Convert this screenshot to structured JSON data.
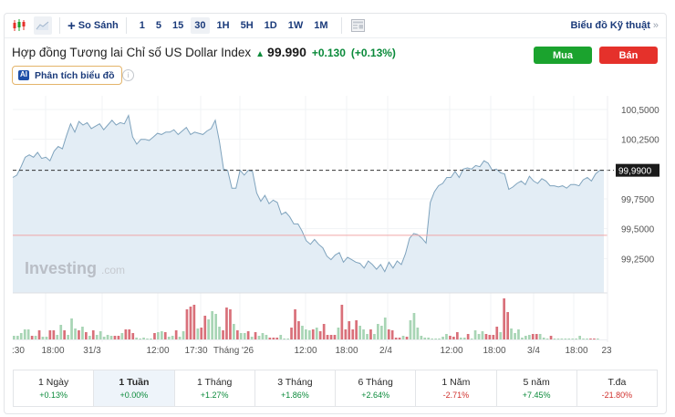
{
  "toolbar": {
    "compare_label": "So Sánh",
    "timeframes": [
      "1",
      "5",
      "15",
      "30",
      "1H",
      "5H",
      "1D",
      "1W",
      "1M"
    ],
    "active_timeframe": "30",
    "technical_link": "Biểu đồ Kỹ thuật",
    "technical_chevron": "»"
  },
  "instrument": {
    "name": "Hợp đồng Tương lai Chỉ số US Dollar Index",
    "direction": "up",
    "price": "99.990",
    "change": "+0.130",
    "change_pct": "(+0.13%)"
  },
  "buttons": {
    "buy": "Mua",
    "sell": "Bán"
  },
  "ai": {
    "badge": "AI",
    "label": "Phân tích biểu đồ",
    "info": "i"
  },
  "colors": {
    "up": "#0a8a3a",
    "down": "#d0312d",
    "buy": "#1ba32e",
    "sell": "#e5312b",
    "line": "#7fa3bd",
    "area": "#e3edf5",
    "vol_up": "#a8d5b5",
    "vol_down": "#d9707a"
  },
  "chart_data": {
    "type": "area",
    "title": "Hợp đồng Tương lai Chỉ số US Dollar Index",
    "watermark": "Investing.com",
    "y_ticks": [
      "100,5000",
      "100,2500",
      "99,7500",
      "99,5000",
      "99,2500"
    ],
    "y_tick_values": [
      100.5,
      100.25,
      99.75,
      99.5,
      99.25
    ],
    "current_price_label": "99,9900",
    "current_price": 99.99,
    "reference_line": 99.445,
    "x_labels": [
      ":30",
      "18:00",
      "31/3",
      "12:00",
      "17:30",
      "Tháng '26",
      "12:00",
      "18:00",
      "2/4",
      "12:00",
      "18:00",
      "3/4",
      "18:00",
      "23"
    ],
    "grid": true,
    "values": [
      99.93,
      99.95,
      100.02,
      100.1,
      100.12,
      100.1,
      100.14,
      100.09,
      100.1,
      100.07,
      100.15,
      100.19,
      100.17,
      100.28,
      100.38,
      100.31,
      100.4,
      100.37,
      100.39,
      100.34,
      100.36,
      100.38,
      100.33,
      100.37,
      100.41,
      100.37,
      100.39,
      100.38,
      100.45,
      100.27,
      100.21,
      100.25,
      100.25,
      100.24,
      100.27,
      100.3,
      100.29,
      100.31,
      100.31,
      100.33,
      100.29,
      100.32,
      100.35,
      100.29,
      100.31,
      100.3,
      100.29,
      100.32,
      100.34,
      100.41,
      100.23,
      100.0,
      99.99,
      99.84,
      99.84,
      99.99,
      99.95,
      99.99,
      99.98,
      99.8,
      99.73,
      99.78,
      99.71,
      99.74,
      99.72,
      99.62,
      99.64,
      99.6,
      99.54,
      99.54,
      99.48,
      99.4,
      99.37,
      99.41,
      99.37,
      99.34,
      99.27,
      99.24,
      99.28,
      99.3,
      99.22,
      99.26,
      99.24,
      99.22,
      99.21,
      99.17,
      99.23,
      99.2,
      99.16,
      99.2,
      99.14,
      99.22,
      99.17,
      99.23,
      99.2,
      99.29,
      99.42,
      99.46,
      99.45,
      99.42,
      99.38,
      99.72,
      99.81,
      99.86,
      99.88,
      99.93,
      99.93,
      99.98,
      99.93,
      100.0,
      100.01,
      100.0,
      100.03,
      100.02,
      100.07,
      100.05,
      99.99,
      100.0,
      99.97,
      99.96,
      99.83,
      99.85,
      99.88,
      99.9,
      99.87,
      99.94,
      99.9,
      99.88,
      99.92,
      99.9,
      99.86,
      99.86,
      99.85,
      99.86,
      99.84,
      99.87,
      99.87,
      99.86,
      99.91,
      99.93,
      99.9,
      99.96,
      99.99,
      99.99
    ],
    "volume": [
      {
        "h": 4,
        "c": "u"
      },
      {
        "h": 4,
        "c": "u"
      },
      {
        "h": 7,
        "c": "u"
      },
      {
        "h": 11,
        "c": "u"
      },
      {
        "h": 11,
        "c": "u"
      },
      {
        "h": 4,
        "c": "d"
      },
      {
        "h": 4,
        "c": "u"
      },
      {
        "h": 10,
        "c": "d"
      },
      {
        "h": 3,
        "c": "u"
      },
      {
        "h": 3,
        "c": "u"
      },
      {
        "h": 10,
        "c": "d"
      },
      {
        "h": 10,
        "c": "d"
      },
      {
        "h": 5,
        "c": "u"
      },
      {
        "h": 16,
        "c": "u"
      },
      {
        "h": 10,
        "c": "d"
      },
      {
        "h": 5,
        "c": "u"
      },
      {
        "h": 23,
        "c": "u"
      },
      {
        "h": 12,
        "c": "u"
      },
      {
        "h": 10,
        "c": "d"
      },
      {
        "h": 14,
        "c": "u"
      },
      {
        "h": 8,
        "c": "d"
      },
      {
        "h": 4,
        "c": "u"
      },
      {
        "h": 10,
        "c": "d"
      },
      {
        "h": 5,
        "c": "u"
      },
      {
        "h": 9,
        "c": "u"
      },
      {
        "h": 3,
        "c": "u"
      },
      {
        "h": 5,
        "c": "u"
      },
      {
        "h": 4,
        "c": "u"
      },
      {
        "h": 4,
        "c": "d"
      },
      {
        "h": 4,
        "c": "d"
      },
      {
        "h": 7,
        "c": "u"
      },
      {
        "h": 11,
        "c": "d"
      },
      {
        "h": 11,
        "c": "d"
      },
      {
        "h": 7,
        "c": "d"
      },
      {
        "h": 2,
        "c": "u"
      },
      {
        "h": 1,
        "c": "u"
      },
      {
        "h": 2,
        "c": "u"
      },
      {
        "h": 1,
        "c": "u"
      },
      {
        "h": 1,
        "c": "u"
      },
      {
        "h": 7,
        "c": "d"
      },
      {
        "h": 8,
        "c": "u"
      },
      {
        "h": 9,
        "c": "u"
      },
      {
        "h": 8,
        "c": "d"
      },
      {
        "h": 3,
        "c": "u"
      },
      {
        "h": 4,
        "c": "u"
      },
      {
        "h": 10,
        "c": "d"
      },
      {
        "h": 3,
        "c": "u"
      },
      {
        "h": 9,
        "c": "u"
      },
      {
        "h": 33,
        "c": "d"
      },
      {
        "h": 36,
        "c": "d"
      },
      {
        "h": 38,
        "c": "d"
      },
      {
        "h": 12,
        "c": "u"
      },
      {
        "h": 13,
        "c": "d"
      },
      {
        "h": 26,
        "c": "d"
      },
      {
        "h": 22,
        "c": "u"
      },
      {
        "h": 31,
        "c": "u"
      },
      {
        "h": 28,
        "c": "u"
      },
      {
        "h": 14,
        "c": "u"
      },
      {
        "h": 10,
        "c": "d"
      },
      {
        "h": 35,
        "c": "d"
      },
      {
        "h": 33,
        "c": "d"
      },
      {
        "h": 17,
        "c": "u"
      },
      {
        "h": 10,
        "c": "d"
      },
      {
        "h": 7,
        "c": "u"
      },
      {
        "h": 7,
        "c": "u"
      },
      {
        "h": 9,
        "c": "d"
      },
      {
        "h": 3,
        "c": "u"
      },
      {
        "h": 8,
        "c": "d"
      },
      {
        "h": 4,
        "c": "u"
      },
      {
        "h": 7,
        "c": "u"
      },
      {
        "h": 5,
        "c": "u"
      },
      {
        "h": 2,
        "c": "d"
      },
      {
        "h": 2,
        "c": "d"
      },
      {
        "h": 2,
        "c": "d"
      },
      {
        "h": 5,
        "c": "u"
      },
      {
        "h": 1,
        "c": "u"
      },
      {
        "h": 1,
        "c": "u"
      },
      {
        "h": 13,
        "c": "d"
      },
      {
        "h": 33,
        "c": "d"
      },
      {
        "h": 20,
        "c": "d"
      },
      {
        "h": 15,
        "c": "u"
      },
      {
        "h": 11,
        "c": "u"
      },
      {
        "h": 10,
        "c": "u"
      },
      {
        "h": 11,
        "c": "d"
      },
      {
        "h": 13,
        "c": "u"
      },
      {
        "h": 9,
        "c": "d"
      },
      {
        "h": 17,
        "c": "d"
      },
      {
        "h": 5,
        "c": "d"
      },
      {
        "h": 5,
        "c": "d"
      },
      {
        "h": 5,
        "c": "d"
      },
      {
        "h": 13,
        "c": "u"
      },
      {
        "h": 38,
        "c": "d"
      },
      {
        "h": 11,
        "c": "d"
      },
      {
        "h": 20,
        "c": "d"
      },
      {
        "h": 11,
        "c": "d"
      },
      {
        "h": 21,
        "c": "d"
      },
      {
        "h": 15,
        "c": "u"
      },
      {
        "h": 11,
        "c": "u"
      },
      {
        "h": 6,
        "c": "u"
      },
      {
        "h": 11,
        "c": "d"
      },
      {
        "h": 6,
        "c": "u"
      },
      {
        "h": 17,
        "c": "u"
      },
      {
        "h": 15,
        "c": "u"
      },
      {
        "h": 24,
        "c": "u"
      },
      {
        "h": 11,
        "c": "d"
      },
      {
        "h": 10,
        "c": "d"
      },
      {
        "h": 2,
        "c": "d"
      },
      {
        "h": 2,
        "c": "d"
      },
      {
        "h": 4,
        "c": "u"
      },
      {
        "h": 3,
        "c": "d"
      },
      {
        "h": 21,
        "c": "u"
      },
      {
        "h": 29,
        "c": "u"
      },
      {
        "h": 13,
        "c": "u"
      },
      {
        "h": 4,
        "c": "u"
      },
      {
        "h": 2,
        "c": "u"
      },
      {
        "h": 2,
        "c": "u"
      },
      {
        "h": 1,
        "c": "u"
      },
      {
        "h": 1,
        "c": "u"
      },
      {
        "h": 1,
        "c": "u"
      },
      {
        "h": 3,
        "c": "u"
      },
      {
        "h": 6,
        "c": "u"
      },
      {
        "h": 4,
        "c": "d"
      },
      {
        "h": 3,
        "c": "d"
      },
      {
        "h": 8,
        "c": "d"
      },
      {
        "h": 2,
        "c": "u"
      },
      {
        "h": 2,
        "c": "u"
      },
      {
        "h": 6,
        "c": "d"
      },
      {
        "h": 1,
        "c": "u"
      },
      {
        "h": 10,
        "c": "u"
      },
      {
        "h": 6,
        "c": "u"
      },
      {
        "h": 9,
        "c": "u"
      },
      {
        "h": 6,
        "c": "d"
      },
      {
        "h": 5,
        "c": "d"
      },
      {
        "h": 5,
        "c": "d"
      },
      {
        "h": 14,
        "c": "d"
      },
      {
        "h": 8,
        "c": "u"
      },
      {
        "h": 45,
        "c": "d"
      },
      {
        "h": 30,
        "c": "d"
      },
      {
        "h": 12,
        "c": "u"
      },
      {
        "h": 7,
        "c": "u"
      },
      {
        "h": 11,
        "c": "u"
      },
      {
        "h": 2,
        "c": "u"
      },
      {
        "h": 4,
        "c": "u"
      },
      {
        "h": 5,
        "c": "u"
      },
      {
        "h": 6,
        "c": "d"
      },
      {
        "h": 6,
        "c": "d"
      },
      {
        "h": 6,
        "c": "u"
      },
      {
        "h": 2,
        "c": "u"
      },
      {
        "h": 1,
        "c": "u"
      },
      {
        "h": 4,
        "c": "d"
      },
      {
        "h": 1,
        "c": "u"
      },
      {
        "h": 1,
        "c": "u"
      },
      {
        "h": 1,
        "c": "u"
      },
      {
        "h": 1,
        "c": "u"
      },
      {
        "h": 1,
        "c": "u"
      },
      {
        "h": 1,
        "c": "u"
      },
      {
        "h": 1,
        "c": "u"
      },
      {
        "h": 4,
        "c": "u"
      },
      {
        "h": 1,
        "c": "u"
      },
      {
        "h": 1,
        "c": "u"
      },
      {
        "h": 1,
        "c": "d"
      },
      {
        "h": 1,
        "c": "d"
      },
      {
        "h": 1,
        "c": "u"
      }
    ]
  },
  "periods": [
    {
      "label": "1 Ngày",
      "value": "+0.13%",
      "dir": "pos"
    },
    {
      "label": "1 Tuần",
      "value": "+0.00%",
      "dir": "pos",
      "active": true
    },
    {
      "label": "1 Tháng",
      "value": "+1.27%",
      "dir": "pos"
    },
    {
      "label": "3 Tháng",
      "value": "+1.86%",
      "dir": "pos"
    },
    {
      "label": "6 Tháng",
      "value": "+2.64%",
      "dir": "pos"
    },
    {
      "label": "1 Năm",
      "value": "-2.71%",
      "dir": "neg"
    },
    {
      "label": "5 năm",
      "value": "+7.45%",
      "dir": "pos"
    },
    {
      "label": "T.đa",
      "value": "-21.80%",
      "dir": "neg"
    }
  ]
}
